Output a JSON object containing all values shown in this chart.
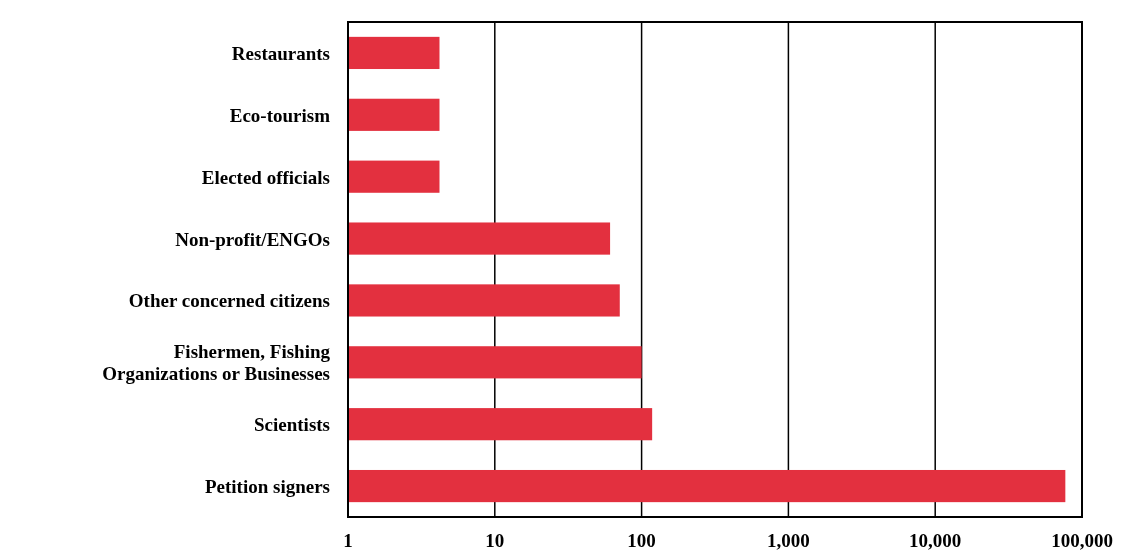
{
  "chart_data": {
    "type": "bar",
    "orientation": "horizontal",
    "log": "x",
    "categories": [
      "Restaurants",
      "Eco-tourism",
      "Elected officials",
      "Non-profit/ENGOs",
      "Other concerned citizens",
      "Fishermen, Fishing Organizations or Businesses",
      "Scientists",
      "Petition signers"
    ],
    "values": [
      4.2,
      4.2,
      4.2,
      61,
      71,
      100,
      118,
      77000
    ],
    "color": "#e3303f",
    "xlim": [
      1,
      100000
    ],
    "xticks": [
      1,
      10,
      100,
      {
        "value": 1000,
        "label": "1,000"
      },
      {
        "value": 10000,
        "label": "10,000"
      },
      {
        "value": 100000,
        "label": "100,000"
      }
    ],
    "grid": "x"
  }
}
